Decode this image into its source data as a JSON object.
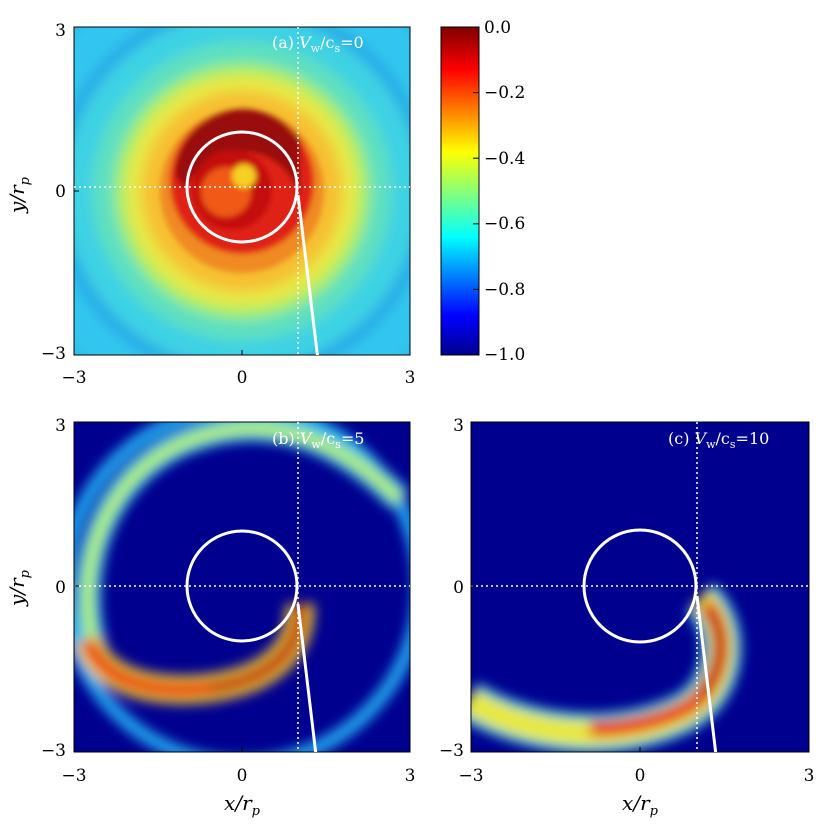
{
  "chart_data": {
    "type": "heatmap",
    "colorbar": {
      "colormap": "jet",
      "range": [
        -1.0,
        0.0
      ],
      "ticks": [
        "0.0",
        "−0.2",
        "−0.4",
        "−0.6",
        "−0.8",
        "−1.0"
      ]
    },
    "panels": [
      {
        "label": "(a) V_w/c_s=0",
        "label_parts": {
          "prefix": "(a) ",
          "var": "V",
          "sub1": "w",
          "mid": "/c",
          "sub2": "s",
          "suffix": "=0"
        },
        "xlim": [
          -3,
          3
        ],
        "ylim": [
          -3,
          3
        ],
        "x_ticks": [
          "−3",
          "0",
          "3"
        ],
        "y_ticks": [
          "3",
          "0",
          "−3"
        ],
        "ylabel": "y/r_p",
        "xlabel": "",
        "background_value": -0.6,
        "description": "tightly wound spiral of high density (near 0.0) around origin with ring pattern"
      },
      {
        "label": "(b) V_w/c_s=5",
        "label_parts": {
          "prefix": "(b) ",
          "var": "V",
          "sub1": "w",
          "mid": "/c",
          "sub2": "s",
          "suffix": "=5"
        },
        "xlim": [
          -3,
          3
        ],
        "ylim": [
          -3,
          3
        ],
        "x_ticks": [
          "−3",
          "0",
          "3"
        ],
        "y_ticks": [
          "3",
          "0",
          "−3"
        ],
        "ylabel": "y/r_p",
        "xlabel": "x/r_p",
        "background_value": -1.0,
        "description": "one-armed spiral wake starting near (1,0)"
      },
      {
        "label": "(c) V_w/c_s=10",
        "label_parts": {
          "prefix": "(c) ",
          "var": "V",
          "sub1": "w",
          "mid": "/c",
          "sub2": "s",
          "suffix": "=10"
        },
        "xlim": [
          -3,
          3
        ],
        "ylim": [
          -3,
          3
        ],
        "x_ticks": [
          "−3",
          "0",
          "3"
        ],
        "y_ticks": [
          "3",
          "0",
          "−3"
        ],
        "ylabel": "",
        "xlabel": "x/r_p",
        "background_value": -1.0,
        "description": "short arc wake in lower half from (1,0) to left edge"
      }
    ],
    "overlays": {
      "orbit_circle_radius": 1.0,
      "dotted_lines": {
        "x": 1.0,
        "y": 0.0
      }
    }
  }
}
